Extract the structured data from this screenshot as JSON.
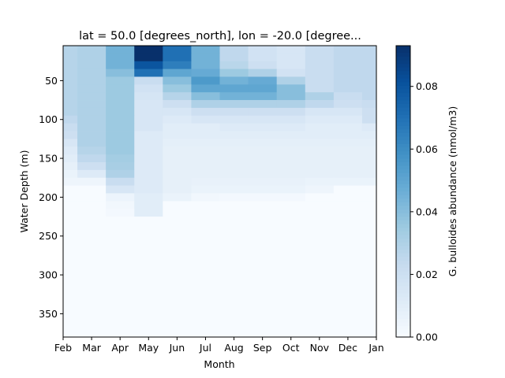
{
  "chart_data": {
    "type": "heatmap",
    "title": "lat = 50.0 [degrees_north], lon = -20.0 [degree...",
    "xlabel": "Month",
    "ylabel": "Water Depth (m)",
    "colorbar_label": "G. bulloides abundance (nmol/m3)",
    "colormap": "Blues",
    "x_tick_labels": [
      "Feb",
      "Mar",
      "Apr",
      "May",
      "Jun",
      "Jul",
      "Aug",
      "Sep",
      "Oct",
      "Nov",
      "Dec",
      "Jan"
    ],
    "y_ticks": [
      50,
      100,
      150,
      200,
      250,
      300,
      350
    ],
    "ylim": [
      380,
      5
    ],
    "colorbar_ticks": [
      0.0,
      0.02,
      0.04,
      0.06,
      0.08
    ],
    "colorbar_tick_labels": [
      "0.00",
      "0.02",
      "0.04",
      "0.06",
      "0.08"
    ],
    "vmin": 0.0,
    "vmax": 0.093,
    "depth_bounds": [
      5,
      15,
      25,
      35,
      45,
      55,
      65,
      75,
      85,
      95,
      105,
      115,
      125,
      135,
      145,
      155,
      165,
      175,
      185,
      195,
      205,
      215,
      225,
      380
    ],
    "values": [
      [
        0.028,
        0.03,
        0.045,
        0.093,
        0.07,
        0.045,
        0.025,
        0.018,
        0.015,
        0.022,
        0.025,
        0.025
      ],
      [
        0.028,
        0.03,
        0.045,
        0.093,
        0.07,
        0.045,
        0.025,
        0.018,
        0.015,
        0.022,
        0.025,
        0.025
      ],
      [
        0.028,
        0.03,
        0.045,
        0.08,
        0.065,
        0.045,
        0.027,
        0.02,
        0.015,
        0.022,
        0.025,
        0.025
      ],
      [
        0.028,
        0.03,
        0.04,
        0.07,
        0.05,
        0.048,
        0.035,
        0.03,
        0.018,
        0.022,
        0.025,
        0.025
      ],
      [
        0.028,
        0.03,
        0.035,
        0.022,
        0.04,
        0.055,
        0.045,
        0.048,
        0.03,
        0.022,
        0.025,
        0.025
      ],
      [
        0.028,
        0.03,
        0.035,
        0.018,
        0.035,
        0.05,
        0.05,
        0.05,
        0.04,
        0.022,
        0.025,
        0.025
      ],
      [
        0.028,
        0.03,
        0.035,
        0.016,
        0.028,
        0.04,
        0.045,
        0.045,
        0.04,
        0.03,
        0.022,
        0.025
      ],
      [
        0.028,
        0.03,
        0.035,
        0.015,
        0.02,
        0.03,
        0.03,
        0.03,
        0.03,
        0.025,
        0.02,
        0.022
      ],
      [
        0.028,
        0.03,
        0.035,
        0.015,
        0.015,
        0.02,
        0.02,
        0.02,
        0.02,
        0.015,
        0.015,
        0.02
      ],
      [
        0.025,
        0.03,
        0.035,
        0.015,
        0.012,
        0.015,
        0.015,
        0.015,
        0.015,
        0.012,
        0.012,
        0.02
      ],
      [
        0.022,
        0.03,
        0.035,
        0.015,
        0.01,
        0.01,
        0.012,
        0.012,
        0.012,
        0.01,
        0.01,
        0.012
      ],
      [
        0.02,
        0.03,
        0.035,
        0.012,
        0.01,
        0.01,
        0.01,
        0.01,
        0.01,
        0.01,
        0.01,
        0.01
      ],
      [
        0.015,
        0.03,
        0.035,
        0.012,
        0.009,
        0.009,
        0.009,
        0.009,
        0.009,
        0.009,
        0.009,
        0.009
      ],
      [
        0.012,
        0.028,
        0.035,
        0.012,
        0.008,
        0.008,
        0.008,
        0.008,
        0.008,
        0.008,
        0.008,
        0.008
      ],
      [
        0.01,
        0.025,
        0.033,
        0.012,
        0.008,
        0.008,
        0.008,
        0.008,
        0.008,
        0.008,
        0.008,
        0.008
      ],
      [
        0.008,
        0.02,
        0.032,
        0.012,
        0.008,
        0.008,
        0.008,
        0.008,
        0.008,
        0.008,
        0.008,
        0.008
      ],
      [
        0.006,
        0.012,
        0.03,
        0.012,
        0.008,
        0.008,
        0.008,
        0.008,
        0.008,
        0.008,
        0.008,
        0.008
      ],
      [
        0.004,
        0.004,
        0.022,
        0.012,
        0.008,
        0.007,
        0.007,
        0.007,
        0.007,
        0.006,
        0.006,
        0.006
      ],
      [
        0.0,
        0.0,
        0.015,
        0.012,
        0.008,
        0.006,
        0.006,
        0.006,
        0.006,
        0.004,
        0.0,
        0.0
      ],
      [
        0.0,
        0.0,
        0.005,
        0.01,
        0.006,
        0.003,
        0.002,
        0.002,
        0.002,
        0.0,
        0.0,
        0.0
      ],
      [
        0.0,
        0.0,
        0.003,
        0.01,
        0.0,
        0.0,
        0.0,
        0.0,
        0.0,
        0.0,
        0.0,
        0.0
      ],
      [
        0.0,
        0.0,
        0.002,
        0.01,
        0.0,
        0.0,
        0.0,
        0.0,
        0.0,
        0.0,
        0.0,
        0.0
      ],
      [
        0.0,
        0.0,
        0.0,
        0.0,
        0.0,
        0.0,
        0.0,
        0.0,
        0.0,
        0.0,
        0.0,
        0.0
      ]
    ]
  }
}
